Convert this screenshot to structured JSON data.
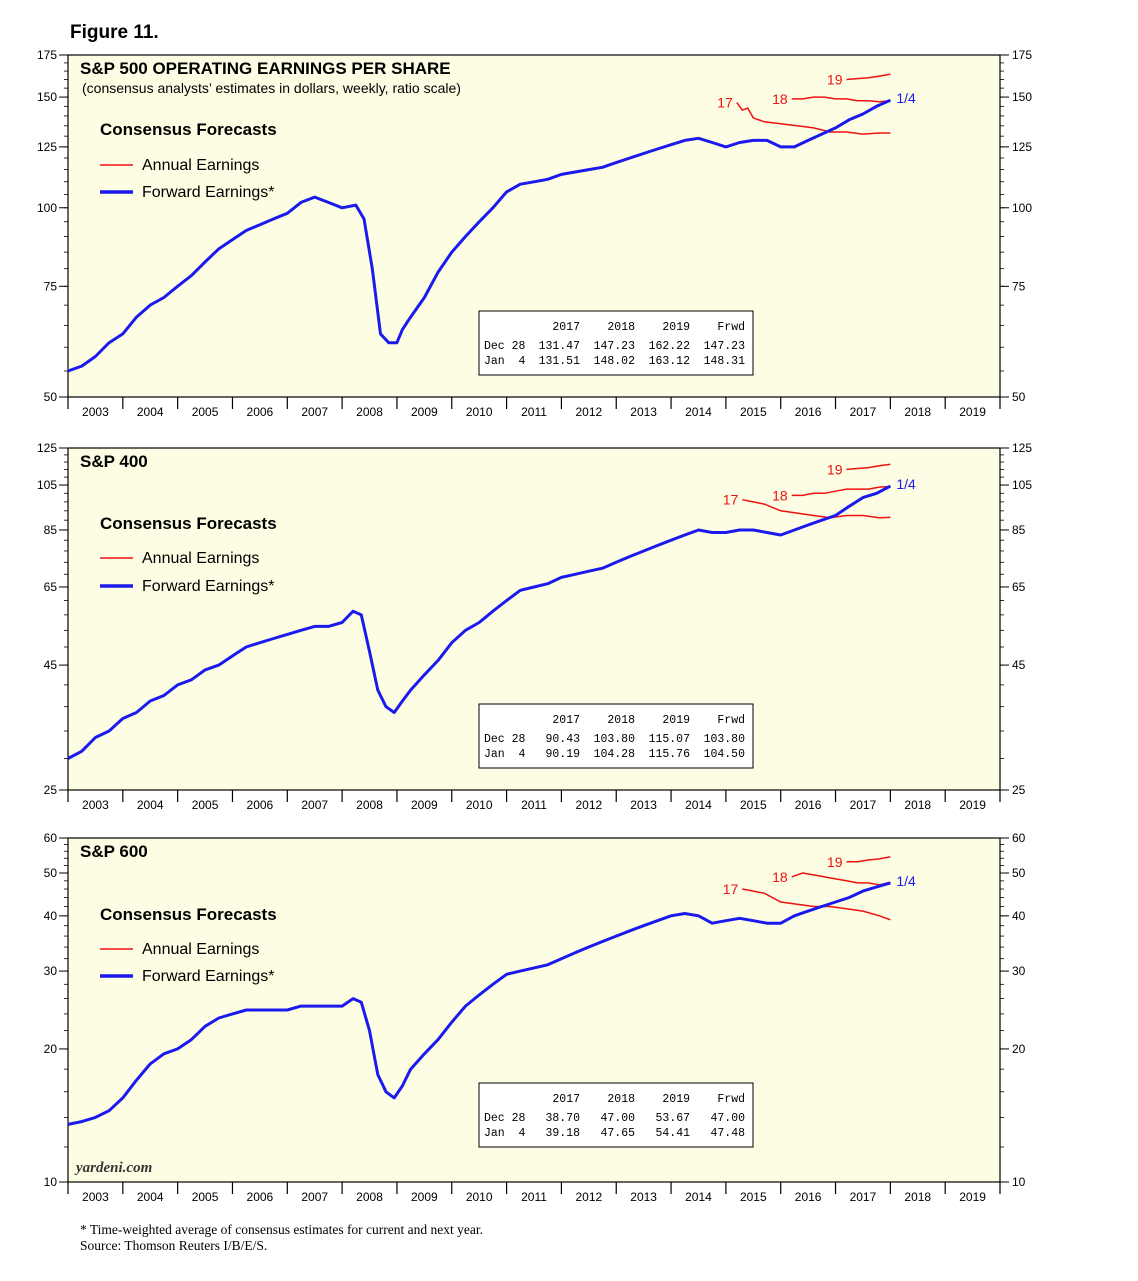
{
  "figure_title": "Figure 11.",
  "footnote": "* Time-weighted average of consensus estimates for current and next year.",
  "source": "Source: Thomson Reuters I/B/E/S.",
  "watermark": "yardeni.com",
  "colors": {
    "annual": "#ee1111",
    "forward": "#1a1aee",
    "panel_bg": "#fdfde3"
  },
  "legend": {
    "title": "Consensus Forecasts",
    "annual": "Annual Earnings",
    "forward": "Forward Earnings*"
  },
  "chart_data": [
    {
      "type": "line",
      "title": "S&P 500 OPERATING EARNINGS PER SHARE",
      "subtitle": "(consensus analysts’ estimates in dollars, weekly, ratio scale)",
      "yscale": "log",
      "ylim": [
        50,
        175
      ],
      "yticks": [
        50,
        75,
        100,
        125,
        150,
        175
      ],
      "ytick_labels": [
        "50",
        "75",
        "100",
        "125",
        "150",
        "175"
      ],
      "xlim": [
        2003,
        2020
      ],
      "xtick_labels": [
        "2003",
        "2004",
        "2005",
        "2006",
        "2007",
        "2008",
        "2009",
        "2010",
        "2011",
        "2012",
        "2013",
        "2014",
        "2015",
        "2016",
        "2017",
        "2018",
        "2019"
      ],
      "forward": {
        "name": "Forward Earnings*",
        "label": "1/4",
        "x": [
          2003.0,
          2003.25,
          2003.5,
          2003.75,
          2004.0,
          2004.25,
          2004.5,
          2004.75,
          2005.0,
          2005.25,
          2005.5,
          2005.75,
          2006.0,
          2006.25,
          2006.5,
          2006.75,
          2007.0,
          2007.25,
          2007.5,
          2007.75,
          2008.0,
          2008.25,
          2008.4,
          2008.55,
          2008.7,
          2008.85,
          2009.0,
          2009.1,
          2009.25,
          2009.5,
          2009.75,
          2010.0,
          2010.25,
          2010.5,
          2010.75,
          2011.0,
          2011.25,
          2011.5,
          2011.75,
          2012.0,
          2012.25,
          2012.5,
          2012.75,
          2013.0,
          2013.25,
          2013.5,
          2013.75,
          2014.0,
          2014.25,
          2014.5,
          2014.75,
          2015.0,
          2015.25,
          2015.5,
          2015.75,
          2016.0,
          2016.25,
          2016.5,
          2016.75,
          2017.0,
          2017.25,
          2017.5,
          2017.75,
          2018.0
        ],
        "y": [
          55,
          56,
          58,
          61,
          63,
          67,
          70,
          72,
          75,
          78,
          82,
          86,
          89,
          92,
          94,
          96,
          98,
          102,
          104,
          102,
          100,
          101,
          96,
          80,
          63,
          61,
          61,
          64,
          67,
          72,
          79,
          85,
          90,
          95,
          100,
          106,
          109,
          110,
          111,
          113,
          114,
          115,
          116,
          118,
          120,
          122,
          124,
          126,
          128,
          129,
          127,
          125,
          127,
          128,
          128,
          125,
          125,
          128,
          131,
          134,
          138,
          141,
          145,
          148.31
        ]
      },
      "annual": [
        {
          "name": "2017",
          "label": "17",
          "x": [
            2015.2,
            2015.3,
            2015.4,
            2015.5,
            2015.7,
            2016.0,
            2016.3,
            2016.6,
            2016.9,
            2017.2,
            2017.5,
            2017.8,
            2018.0
          ],
          "y": [
            147,
            143,
            144,
            139,
            137,
            136,
            135,
            134,
            132,
            132,
            131,
            131.5,
            131.51
          ]
        },
        {
          "name": "2018",
          "label": "18",
          "x": [
            2016.2,
            2016.4,
            2016.6,
            2016.8,
            2017.0,
            2017.2,
            2017.4,
            2017.6,
            2017.8,
            2018.0
          ],
          "y": [
            149,
            149,
            150,
            150,
            149,
            149,
            148,
            148,
            147.5,
            148.02
          ]
        },
        {
          "name": "2019",
          "label": "19",
          "x": [
            2017.2,
            2017.4,
            2017.6,
            2017.8,
            2018.0
          ],
          "y": [
            160,
            160.5,
            161,
            162,
            163.12
          ]
        }
      ],
      "table": {
        "header": [
          "",
          "2017",
          "2018",
          "2019",
          "Frwd"
        ],
        "rows": [
          [
            "Dec 28",
            "131.47",
            "147.23",
            "162.22",
            "147.23"
          ],
          [
            "Jan  4",
            "131.51",
            "148.02",
            "163.12",
            "148.31"
          ]
        ]
      }
    },
    {
      "type": "line",
      "title": "S&P 400",
      "subtitle": "",
      "yscale": "log",
      "ylim": [
        25,
        125
      ],
      "yticks": [
        25,
        45,
        65,
        85,
        105,
        125
      ],
      "ytick_labels": [
        "25",
        "45",
        "65",
        "85",
        "105",
        "125"
      ],
      "xlim": [
        2003,
        2020
      ],
      "xtick_labels": [
        "2003",
        "2004",
        "2005",
        "2006",
        "2007",
        "2008",
        "2009",
        "2010",
        "2011",
        "2012",
        "2013",
        "2014",
        "2015",
        "2016",
        "2017",
        "2018",
        "2019"
      ],
      "forward": {
        "name": "Forward Earnings*",
        "label": "1/4",
        "x": [
          2003.0,
          2003.25,
          2003.5,
          2003.75,
          2004.0,
          2004.25,
          2004.5,
          2004.75,
          2005.0,
          2005.25,
          2005.5,
          2005.75,
          2006.0,
          2006.25,
          2006.5,
          2006.75,
          2007.0,
          2007.25,
          2007.5,
          2007.75,
          2008.0,
          2008.2,
          2008.35,
          2008.5,
          2008.65,
          2008.8,
          2008.95,
          2009.1,
          2009.25,
          2009.5,
          2009.75,
          2010.0,
          2010.25,
          2010.5,
          2010.75,
          2011.0,
          2011.25,
          2011.5,
          2011.75,
          2012.0,
          2012.25,
          2012.5,
          2012.75,
          2013.0,
          2013.25,
          2013.5,
          2013.75,
          2014.0,
          2014.25,
          2014.5,
          2014.75,
          2015.0,
          2015.25,
          2015.5,
          2015.75,
          2016.0,
          2016.25,
          2016.5,
          2016.75,
          2017.0,
          2017.25,
          2017.5,
          2017.75,
          2018.0
        ],
        "y": [
          29,
          30,
          32,
          33,
          35,
          36,
          38,
          39,
          41,
          42,
          44,
          45,
          47,
          49,
          50,
          51,
          52,
          53,
          54,
          54,
          55,
          58,
          57,
          48,
          40,
          37,
          36,
          38,
          40,
          43,
          46,
          50,
          53,
          55,
          58,
          61,
          64,
          65,
          66,
          68,
          69,
          70,
          71,
          73,
          75,
          77,
          79,
          81,
          83,
          85,
          84,
          84,
          85,
          85,
          84,
          83,
          85,
          87,
          89,
          91,
          95,
          99,
          101,
          104.5
        ]
      },
      "annual": [
        {
          "name": "2017",
          "label": "17",
          "x": [
            2015.3,
            2015.5,
            2015.7,
            2016.0,
            2016.3,
            2016.6,
            2016.9,
            2017.2,
            2017.5,
            2017.8,
            2018.0
          ],
          "y": [
            98,
            97,
            96,
            93,
            92,
            91,
            90,
            91,
            91,
            90,
            90.19
          ]
        },
        {
          "name": "2018",
          "label": "18",
          "x": [
            2016.2,
            2016.4,
            2016.6,
            2016.8,
            2017.0,
            2017.2,
            2017.4,
            2017.6,
            2017.8,
            2018.0
          ],
          "y": [
            100,
            100,
            101,
            101,
            102,
            103,
            103,
            103,
            104,
            104.28
          ]
        },
        {
          "name": "2019",
          "label": "19",
          "x": [
            2017.2,
            2017.4,
            2017.6,
            2017.8,
            2018.0
          ],
          "y": [
            113,
            113.5,
            114,
            115,
            115.76
          ]
        }
      ],
      "table": {
        "header": [
          "",
          "2017",
          "2018",
          "2019",
          "Frwd"
        ],
        "rows": [
          [
            "Dec 28",
            "90.43",
            "103.80",
            "115.07",
            "103.80"
          ],
          [
            "Jan  4",
            "90.19",
            "104.28",
            "115.76",
            "104.50"
          ]
        ]
      }
    },
    {
      "type": "line",
      "title": "S&P 600",
      "subtitle": "",
      "yscale": "log",
      "ylim": [
        10,
        60
      ],
      "yticks": [
        10,
        20,
        30,
        40,
        50,
        60
      ],
      "ytick_labels": [
        "10",
        "20",
        "30",
        "40",
        "50",
        "60"
      ],
      "xlim": [
        2003,
        2020
      ],
      "xtick_labels": [
        "2003",
        "2004",
        "2005",
        "2006",
        "2007",
        "2008",
        "2009",
        "2010",
        "2011",
        "2012",
        "2013",
        "2014",
        "2015",
        "2016",
        "2017",
        "2018",
        "2019"
      ],
      "forward": {
        "name": "Forward Earnings*",
        "label": "1/4",
        "x": [
          2003.0,
          2003.25,
          2003.5,
          2003.75,
          2004.0,
          2004.25,
          2004.5,
          2004.75,
          2005.0,
          2005.25,
          2005.5,
          2005.75,
          2006.0,
          2006.25,
          2006.5,
          2006.75,
          2007.0,
          2007.25,
          2007.5,
          2007.75,
          2008.0,
          2008.2,
          2008.35,
          2008.5,
          2008.65,
          2008.8,
          2008.95,
          2009.1,
          2009.25,
          2009.5,
          2009.75,
          2010.0,
          2010.25,
          2010.5,
          2010.75,
          2011.0,
          2011.25,
          2011.5,
          2011.75,
          2012.0,
          2012.25,
          2012.5,
          2012.75,
          2013.0,
          2013.25,
          2013.5,
          2013.75,
          2014.0,
          2014.25,
          2014.5,
          2014.75,
          2015.0,
          2015.25,
          2015.5,
          2015.75,
          2016.0,
          2016.25,
          2016.5,
          2016.75,
          2017.0,
          2017.25,
          2017.5,
          2017.75,
          2018.0
        ],
        "y": [
          13.5,
          13.7,
          14,
          14.5,
          15.5,
          17,
          18.5,
          19.5,
          20,
          21,
          22.5,
          23.5,
          24,
          24.5,
          24.5,
          24.5,
          24.5,
          25,
          25,
          25,
          25,
          26,
          25.5,
          22,
          17.5,
          16,
          15.5,
          16.5,
          18,
          19.5,
          21,
          23,
          25,
          26.5,
          28,
          29.5,
          30,
          30.5,
          31,
          32,
          33,
          34,
          35,
          36,
          37,
          38,
          39,
          40,
          40.5,
          40,
          38.5,
          39,
          39.5,
          39,
          38.5,
          38.5,
          40,
          41,
          42,
          43,
          44,
          45.5,
          46.5,
          47.48
        ]
      },
      "annual": [
        {
          "name": "2017",
          "label": "17",
          "x": [
            2015.3,
            2015.5,
            2015.7,
            2016.0,
            2016.3,
            2016.6,
            2016.9,
            2017.2,
            2017.5,
            2017.8,
            2018.0
          ],
          "y": [
            46,
            45.5,
            45,
            43,
            42.5,
            42,
            42,
            41.5,
            41,
            40,
            39.18
          ]
        },
        {
          "name": "2018",
          "label": "18",
          "x": [
            2016.2,
            2016.4,
            2016.6,
            2016.8,
            2017.0,
            2017.2,
            2017.4,
            2017.6,
            2017.8,
            2018.0
          ],
          "y": [
            49,
            50,
            49.5,
            49,
            48.5,
            48,
            47.5,
            47.5,
            47,
            47.65
          ]
        },
        {
          "name": "2019",
          "label": "19",
          "x": [
            2017.2,
            2017.4,
            2017.6,
            2017.8,
            2018.0
          ],
          "y": [
            53,
            53,
            53.5,
            53.8,
            54.41
          ]
        }
      ],
      "table": {
        "header": [
          "",
          "2017",
          "2018",
          "2019",
          "Frwd"
        ],
        "rows": [
          [
            "Dec 28",
            "38.70",
            "47.00",
            "53.67",
            "47.00"
          ],
          [
            "Jan  4",
            "39.18",
            "47.65",
            "54.41",
            "47.48"
          ]
        ]
      }
    }
  ]
}
